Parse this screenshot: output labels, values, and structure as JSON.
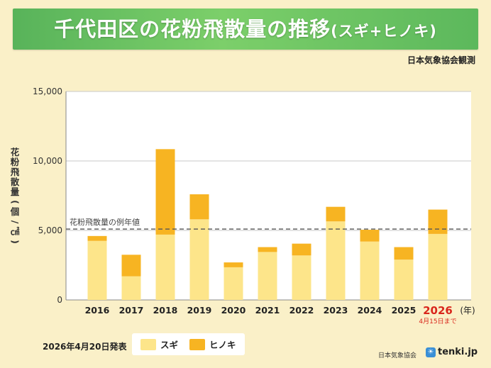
{
  "header": {
    "title_main": "千代田区の花粉飛散量の推移",
    "title_sub": "(スギ+ヒノキ)"
  },
  "source_note": "日本気象協会観測",
  "announce": "2026年4月20日発表",
  "footer": {
    "org": "日本気象協会",
    "brand": "tenki.jp",
    "brand_icon": "sun-cloud-logo"
  },
  "colors": {
    "sugi": "#fde58a",
    "hinoki": "#f7b422",
    "plot_bg": "#ffffff",
    "highlight_year": "#d9261c",
    "avg_line": "#555555"
  },
  "chart_data": {
    "type": "bar",
    "stacked": true,
    "title": "千代田区の花粉飛散量の推移(スギ+ヒノキ)",
    "ylabel": "花粉飛散量(個/㎠)",
    "x_unit": "(年)",
    "ylim": [
      0,
      15000
    ],
    "yticks": [
      "0",
      "5,000",
      "10,000",
      "15,000"
    ],
    "ytick_values": [
      0,
      5000,
      10000,
      15000
    ],
    "categories": [
      "2016",
      "2017",
      "2018",
      "2019",
      "2020",
      "2021",
      "2022",
      "2023",
      "2024",
      "2025",
      "2026"
    ],
    "highlight_category": "2026",
    "highlight_note": "4月15日まで",
    "series": [
      {
        "name": "スギ",
        "values": [
          4250,
          1700,
          4700,
          5800,
          2350,
          3450,
          3200,
          5650,
          4200,
          2900,
          4750
        ]
      },
      {
        "name": "ヒノキ",
        "values": [
          350,
          1550,
          6150,
          1800,
          350,
          350,
          850,
          1050,
          850,
          900,
          1750
        ]
      }
    ],
    "reference_line": {
      "label": "花粉飛散量の例年値",
      "value": 5100
    },
    "legend": [
      "スギ",
      "ヒノキ"
    ]
  }
}
